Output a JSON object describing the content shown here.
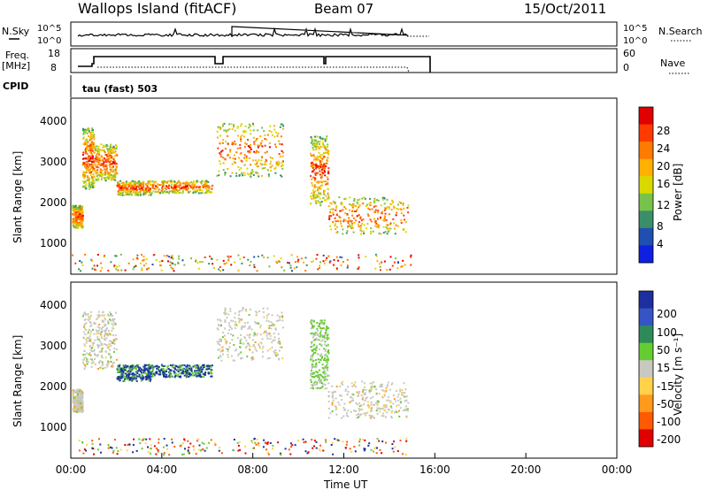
{
  "header": {
    "station": "Wallops Island (fitACF)",
    "beam": "Beam 07",
    "date": "15/Oct/2011"
  },
  "top_panels": {
    "nsky_label": "N.Sky",
    "nsearch_label": "N.Search",
    "nsky_ticks": [
      "10^5",
      "10^0"
    ],
    "nsearch_ticks": [
      "10^5",
      "10^0"
    ],
    "freq_label_1": "Freq.",
    "freq_label_2": "[MHz]",
    "freq_ticks": [
      "18",
      "8"
    ],
    "nave_label": "Nave",
    "nave_ticks": [
      "60",
      "0"
    ],
    "cpid_label": "CPID",
    "cpid_value": "tau (fast) 503"
  },
  "chart_data": [
    {
      "type": "heatmap",
      "panel": "power",
      "xlabel": "",
      "ylabel": "Slant Range [km]",
      "xlim": [
        0,
        24
      ],
      "ylim": [
        200,
        4500
      ],
      "yticks": [
        "4000",
        "3000",
        "2000",
        "1000"
      ],
      "colorbar_label": "Power [dB]",
      "colorbar_ticks": [
        "28",
        "24",
        "20",
        "16",
        "12",
        "8",
        "4"
      ],
      "colorbar_colors": [
        "#e00000",
        "#ff3a00",
        "#ff7a00",
        "#ffb000",
        "#d9d900",
        "#77c24a",
        "#3a8f6a",
        "#1f4fb0",
        "#1020e0"
      ],
      "echo_regions": [
        {
          "x": [
            0.05,
            0.5
          ],
          "y": [
            1350,
            1900
          ]
        },
        {
          "x": [
            0.5,
            1.0
          ],
          "y": [
            2300,
            3800
          ]
        },
        {
          "x": [
            1.0,
            2.0
          ],
          "y": [
            2500,
            3400
          ]
        },
        {
          "x": [
            2.0,
            3.5
          ],
          "y": [
            2150,
            2500
          ]
        },
        {
          "x": [
            3.5,
            6.2
          ],
          "y": [
            2200,
            2500
          ]
        },
        {
          "x": [
            6.4,
            9.3
          ],
          "y": [
            2600,
            3900
          ]
        },
        {
          "x": [
            10.5,
            11.3
          ],
          "y": [
            1900,
            3600
          ]
        },
        {
          "x": [
            11.3,
            14.8
          ],
          "y": [
            1200,
            2100
          ]
        }
      ]
    },
    {
      "type": "heatmap",
      "panel": "velocity",
      "xlabel": "Time UT",
      "ylabel": "Slant Range [km]",
      "xlim": [
        0,
        24
      ],
      "ylim": [
        200,
        4500
      ],
      "yticks": [
        "4000",
        "3000",
        "2000",
        "1000"
      ],
      "xticks": [
        "00:00",
        "04:00",
        "08:00",
        "12:00",
        "16:00",
        "20:00",
        "00:00"
      ],
      "colorbar_label": "Velocity [m s⁻¹]",
      "colorbar_ticks": [
        "200",
        "100",
        "50",
        "15",
        "-15",
        "-50",
        "-100",
        "-200"
      ],
      "colorbar_colors": [
        "#1d2f9e",
        "#3555c4",
        "#2f8a5a",
        "#66cc33",
        "#c8c8c0",
        "#ffd24a",
        "#ff9a1a",
        "#ff5a00",
        "#e00000"
      ],
      "echo_regions": [
        {
          "x": [
            0.05,
            0.5
          ],
          "y": [
            1350,
            1900
          ]
        },
        {
          "x": [
            0.5,
            2.0
          ],
          "y": [
            2400,
            3800
          ]
        },
        {
          "x": [
            2.0,
            3.5
          ],
          "y": [
            2100,
            2500
          ]
        },
        {
          "x": [
            3.5,
            6.2
          ],
          "y": [
            2200,
            2500
          ]
        },
        {
          "x": [
            6.4,
            9.3
          ],
          "y": [
            2600,
            3900
          ]
        },
        {
          "x": [
            10.5,
            11.3
          ],
          "y": [
            1900,
            3600
          ]
        },
        {
          "x": [
            11.3,
            14.8
          ],
          "y": [
            1200,
            2100
          ]
        }
      ]
    }
  ]
}
